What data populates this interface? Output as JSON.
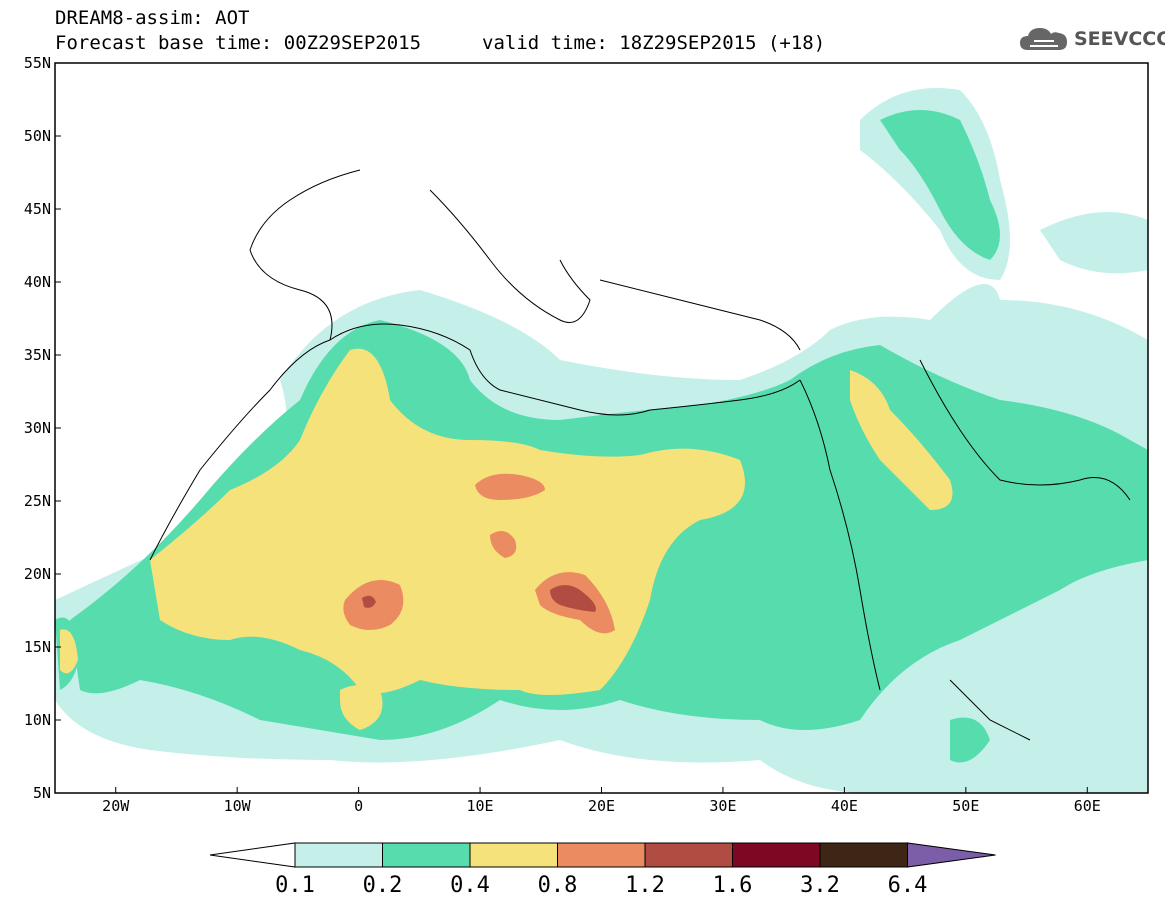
{
  "header": {
    "title_line1": "DREAM8-assim: AOT",
    "title_line2": "Forecast base time: 00Z29SEP2015",
    "valid_time": "valid time: 18Z29SEP2015 (+18)",
    "logo_text": "SEEVCCC",
    "logo_icon": "cloud-icon"
  },
  "map": {
    "lon_range": [
      -25,
      65
    ],
    "lat_range": [
      5,
      55
    ],
    "lat_labels": [
      "55N",
      "50N",
      "45N",
      "40N",
      "35N",
      "30N",
      "25N",
      "20N",
      "15N",
      "10N",
      "5N"
    ],
    "lat_values": [
      55,
      50,
      45,
      40,
      35,
      30,
      25,
      20,
      15,
      10,
      5
    ],
    "lon_labels": [
      "20W",
      "10W",
      "0",
      "10E",
      "20E",
      "30E",
      "40E",
      "50E",
      "60E"
    ],
    "lon_values": [
      -20,
      -10,
      0,
      10,
      20,
      30,
      40,
      50,
      60
    ]
  },
  "colorbar": {
    "labels": [
      "0.1",
      "0.2",
      "0.4",
      "0.8",
      "1.2",
      "1.6",
      "3.2",
      "6.4"
    ],
    "colors": [
      "#c4f0e9",
      "#57dcae",
      "#f6e27a",
      "#ea8b62",
      "#b14c42",
      "#7e0824",
      "#3e2616"
    ],
    "under_color": "#ffffff",
    "over_color": "#7b5ea7"
  },
  "colors": {
    "aot_0_1": "#c4f0e9",
    "aot_0_2": "#57dcae",
    "aot_0_4": "#f6e27a",
    "aot_0_8": "#ea8b62",
    "aot_1_2": "#b14c42"
  }
}
